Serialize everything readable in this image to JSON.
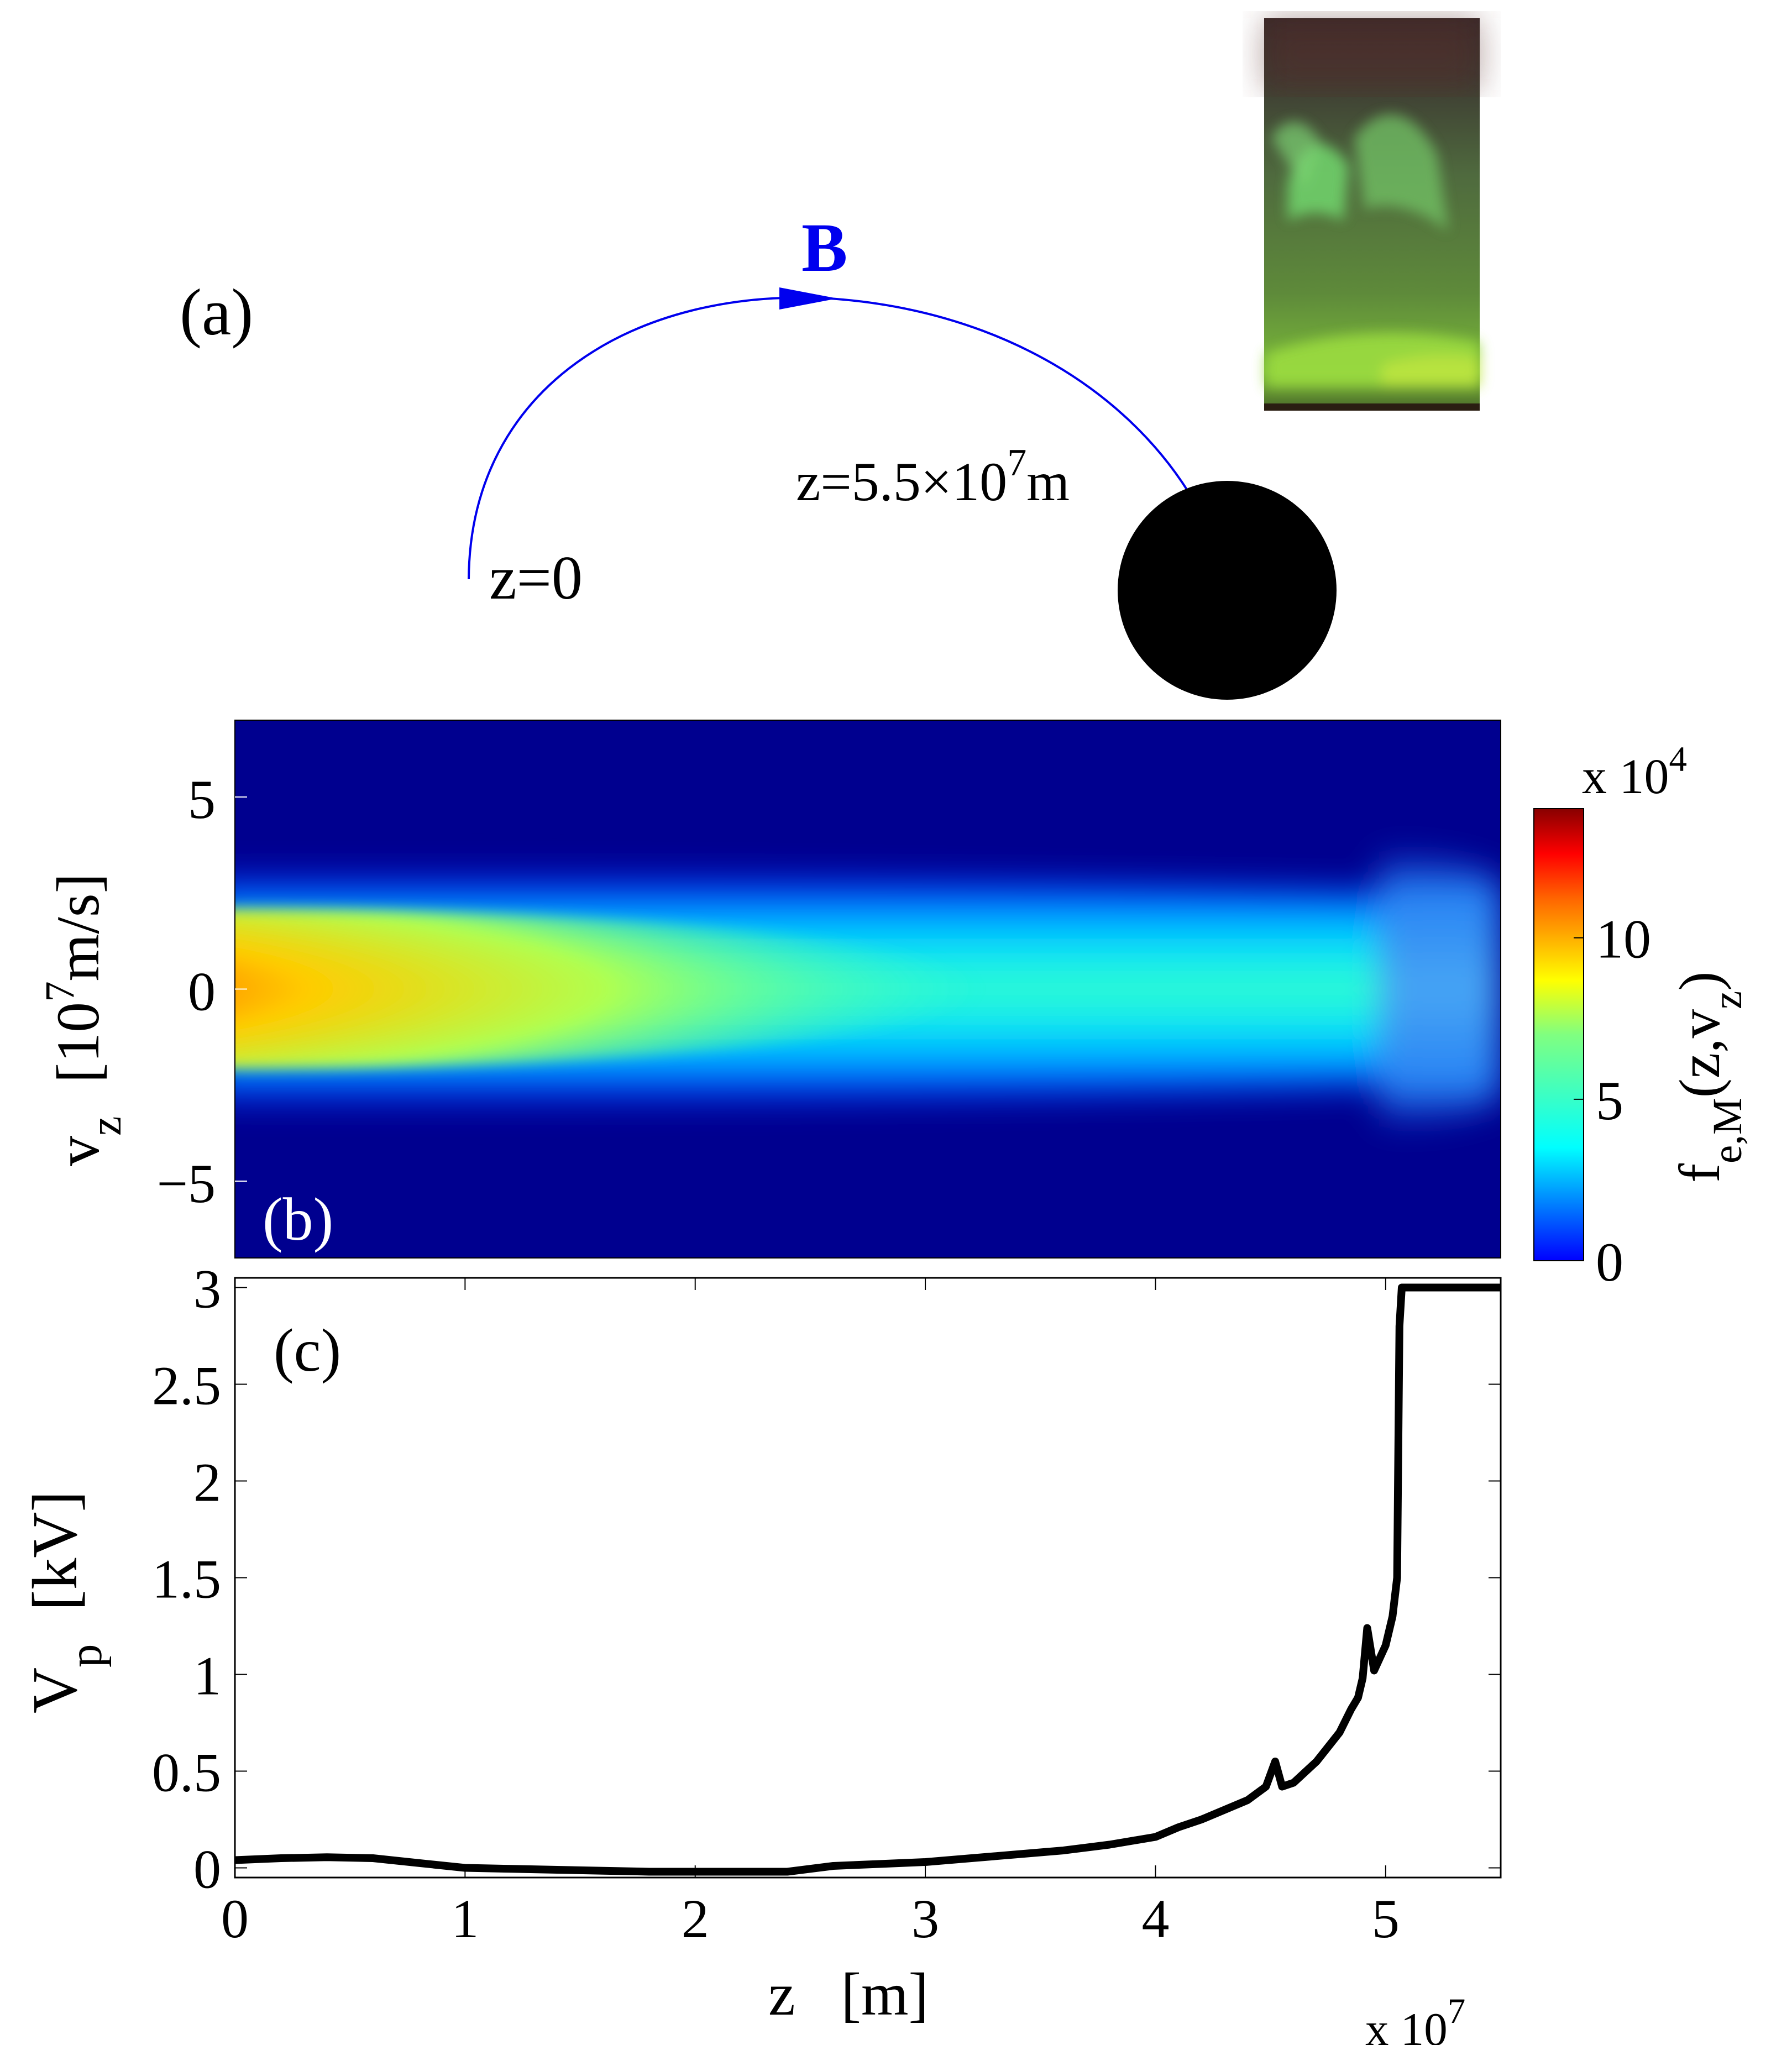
{
  "panel_a": {
    "label": "(a)",
    "field_label": "B",
    "start_label": "z=0",
    "end_label_base": "z=5.5×10",
    "end_label_exp": "7",
    "end_label_unit": "m",
    "field_color": "#0000ee"
  },
  "chart_data": [
    {
      "type": "heatmap",
      "panel_label": "(b)",
      "xlim": [
        0,
        5.5
      ],
      "ylim": [
        -7,
        7
      ],
      "yticks": [
        "5",
        "0",
        "−5"
      ],
      "ylabel_main": "v",
      "ylabel_sub": "z",
      "ylabel_units": "[10",
      "ylabel_units_exp": "7",
      "ylabel_units_tail": "m/s]",
      "colorbar": {
        "range": [
          0,
          14
        ],
        "ticks": [
          "0",
          "5",
          "10"
        ],
        "multiplier": "x 10",
        "multiplier_exp": "4",
        "label_main": "f",
        "label_sub": "e,M",
        "label_mid": "(z,v",
        "label_sub2": "z",
        "label_end": ")"
      }
    },
    {
      "type": "line",
      "panel_label": "(c)",
      "xlim": [
        0,
        5.5
      ],
      "ylim": [
        -0.05,
        3.05
      ],
      "xticks": [
        "0",
        "1",
        "2",
        "3",
        "4",
        "5"
      ],
      "yticks": [
        "0",
        "0.5",
        "1",
        "1.5",
        "2",
        "2.5",
        "3"
      ],
      "xlabel": "z   [m]",
      "x_multiplier": "x 10",
      "x_multiplier_exp": "7",
      "ylabel_main": "V",
      "ylabel_sub": "p",
      "ylabel_units": "[kV]",
      "series": [
        {
          "x": [
            0,
            0.2,
            0.4,
            0.6,
            0.8,
            1.0,
            1.2,
            1.4,
            1.6,
            1.8,
            2.0,
            2.2,
            2.4,
            2.6,
            2.8,
            3.0,
            3.2,
            3.4,
            3.6,
            3.8,
            3.9,
            4.0,
            4.1,
            4.2,
            4.3,
            4.4,
            4.48,
            4.52,
            4.55,
            4.6,
            4.7,
            4.8,
            4.85,
            4.88,
            4.9,
            4.92,
            4.95,
            5.0,
            5.03,
            5.05,
            5.06,
            5.07,
            5.1,
            5.2,
            5.3,
            5.4,
            5.5
          ],
          "values": [
            0.04,
            0.05,
            0.055,
            0.05,
            0.025,
            0.0,
            -0.005,
            -0.01,
            -0.015,
            -0.02,
            -0.02,
            -0.02,
            -0.02,
            0.01,
            0.02,
            0.03,
            0.05,
            0.07,
            0.09,
            0.12,
            0.14,
            0.16,
            0.21,
            0.25,
            0.3,
            0.35,
            0.42,
            0.55,
            0.42,
            0.44,
            0.55,
            0.7,
            0.82,
            0.88,
            0.98,
            1.24,
            1.02,
            1.15,
            1.3,
            1.5,
            2.8,
            3.0,
            3.0,
            3.0,
            3.0,
            3.0,
            3.0
          ]
        }
      ]
    }
  ]
}
